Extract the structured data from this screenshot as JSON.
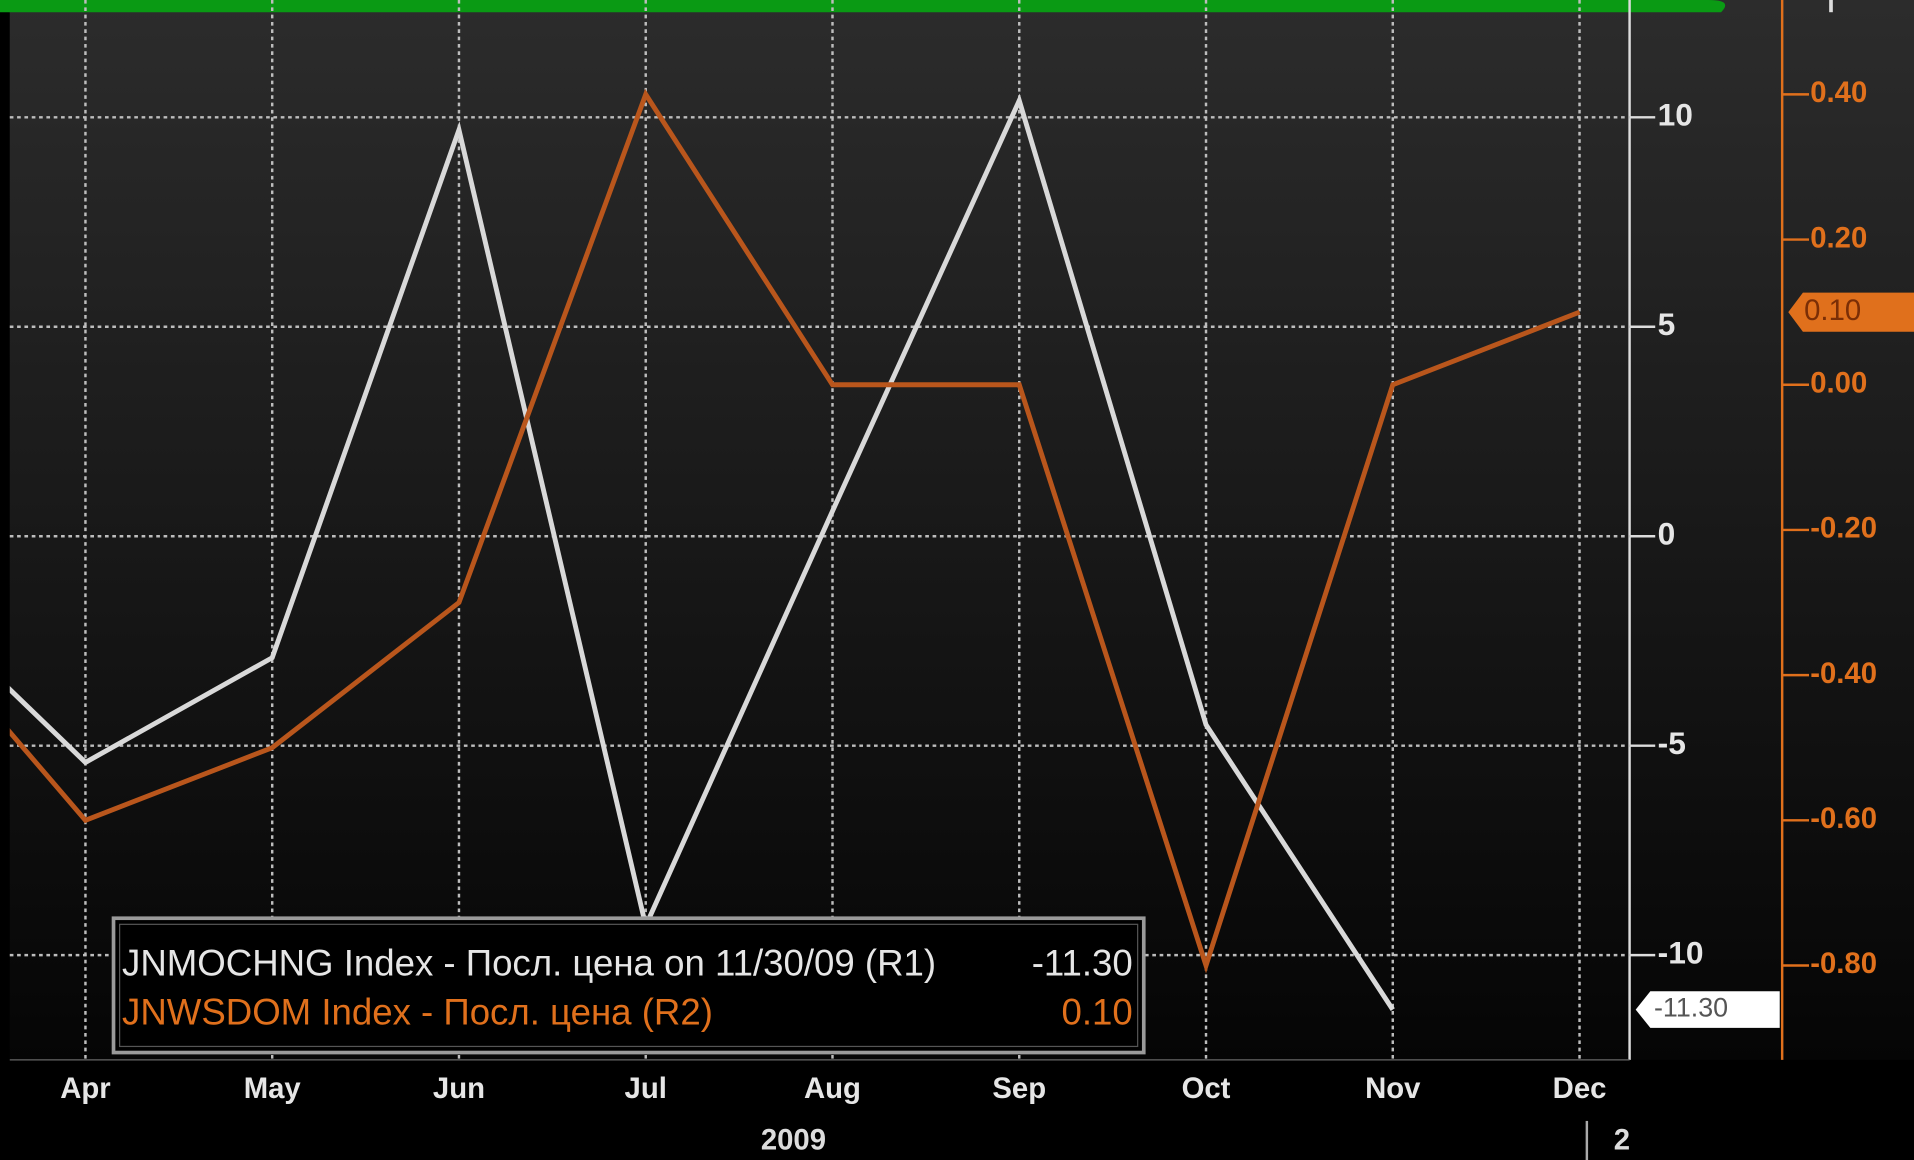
{
  "chart_data": {
    "type": "line",
    "categories": [
      null,
      "Apr",
      "May",
      "Jun",
      "Jul",
      "Aug",
      "Sep",
      "Oct",
      "Nov",
      "Dec"
    ],
    "year_labels": [
      "2009",
      "2"
    ],
    "series": [
      {
        "name": "JNMOCHNG Index - Посл. цена on 11/30/09 (R1)",
        "color": "#d9d9d9",
        "axis": "y",
        "values": [
          -1.1,
          -5.4,
          -2.9,
          9.7,
          -9.3,
          0.6,
          10.4,
          -4.5,
          -11.3,
          null
        ],
        "last_label": "-11.30"
      },
      {
        "name": "JNWSDOM  Index - Посл. цена (R2)",
        "color": "#b9561c",
        "axis": "y2",
        "values": [
          -0.3,
          -0.6,
          -0.5,
          -0.3,
          0.4,
          0.0,
          0.0,
          -0.8,
          0.0,
          0.1
        ],
        "last_label": "0.10"
      }
    ],
    "ylim": [
      -12.5,
      12.8
    ],
    "yticks": [
      -10,
      -5,
      0,
      5,
      10
    ],
    "y2lim": [
      -0.93,
      0.53
    ],
    "y2ticks": [
      {
        "value": 0.4,
        "label": "0.40"
      },
      {
        "value": 0.2,
        "label": "0.20"
      },
      {
        "value": 0,
        "label": "0.00"
      },
      {
        "value": -0.2,
        "label": "-0.20"
      },
      {
        "value": -0.4,
        "label": "-0.40"
      },
      {
        "value": -0.6,
        "label": "-0.60"
      },
      {
        "value": -0.8,
        "label": "-0.80"
      }
    ],
    "grid": true
  }
}
